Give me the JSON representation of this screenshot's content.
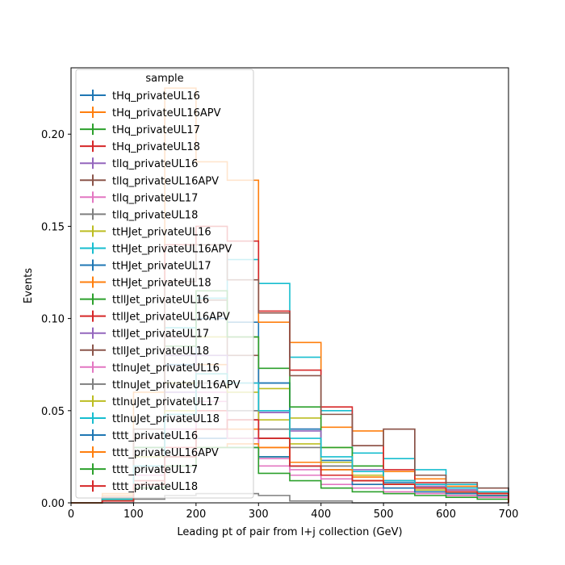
{
  "chart_data": {
    "type": "histogram-step",
    "xlabel": "Leading pt of pair from l+j collection (GeV)",
    "ylabel": "Events",
    "xlim": [
      0,
      700
    ],
    "ylim": [
      0,
      0.236
    ],
    "xticks": [
      "0",
      "100",
      "200",
      "300",
      "400",
      "500",
      "600",
      "700"
    ],
    "yticks": [
      "0.00",
      "0.05",
      "0.10",
      "0.15",
      "0.20"
    ],
    "grid": false,
    "legend": {
      "title": "sample",
      "placement": "upper-left"
    },
    "bin_edges": [
      0,
      50,
      100,
      150,
      200,
      250,
      300,
      350,
      400,
      450,
      500,
      550,
      600,
      650,
      700
    ],
    "series": [
      {
        "name": "tHq_privateUL16",
        "color": "#1f77b4",
        "values": [
          0.0,
          0.002,
          0.008,
          0.02,
          0.035,
          0.045,
          0.065,
          0.04,
          0.02,
          0.015,
          0.01,
          0.008,
          0.006,
          0.004
        ]
      },
      {
        "name": "tHq_privateUL16APV",
        "color": "#ff7f0e",
        "values": [
          0.0,
          0.005,
          0.02,
          0.05,
          0.075,
          0.04,
          0.03,
          0.02,
          0.015,
          0.01,
          0.008,
          0.006,
          0.004,
          0.003
        ]
      },
      {
        "name": "tHq_privateUL17",
        "color": "#2ca02c",
        "values": [
          0.0,
          0.002,
          0.01,
          0.025,
          0.04,
          0.035,
          0.025,
          0.02,
          0.015,
          0.012,
          0.01,
          0.008,
          0.006,
          0.005
        ]
      },
      {
        "name": "tHq_privateUL18",
        "color": "#d62728",
        "values": [
          0.0,
          0.002,
          0.012,
          0.03,
          0.05,
          0.045,
          0.035,
          0.02,
          0.015,
          0.012,
          0.01,
          0.008,
          0.006,
          0.005
        ]
      },
      {
        "name": "tllq_privateUL16",
        "color": "#9467bd",
        "values": [
          0.0,
          0.002,
          0.03,
          0.08,
          0.1,
          0.09,
          0.049,
          0.04,
          0.02,
          0.015,
          0.012,
          0.01,
          0.008,
          0.006
        ]
      },
      {
        "name": "tllq_privateUL16APV",
        "color": "#8c564b",
        "values": [
          0.0,
          0.003,
          0.035,
          0.09,
          0.11,
          0.08,
          0.035,
          0.02,
          0.018,
          0.015,
          0.04,
          0.01,
          0.008,
          0.006
        ]
      },
      {
        "name": "tllq_privateUL17",
        "color": "#e377c2",
        "values": [
          0.0,
          0.002,
          0.015,
          0.04,
          0.06,
          0.035,
          0.02,
          0.015,
          0.01,
          0.008,
          0.006,
          0.005,
          0.004,
          0.003
        ]
      },
      {
        "name": "tllq_privateUL18",
        "color": "#7f7f7f",
        "values": [
          0.0,
          0.0,
          0.002,
          0.004,
          0.005,
          0.005,
          0.004,
          0.001,
          0.001,
          0.0,
          0.0,
          0.0,
          0.0,
          0.0
        ]
      },
      {
        "name": "ttHJet_privateUL16",
        "color": "#bcbd22",
        "values": [
          0.0,
          0.002,
          0.025,
          0.065,
          0.09,
          0.09,
          0.062,
          0.046,
          0.03,
          0.02,
          0.012,
          0.008,
          0.006,
          0.004
        ]
      },
      {
        "name": "ttHJet_privateUL16APV",
        "color": "#17becf",
        "values": [
          0.0,
          0.003,
          0.04,
          0.095,
          0.111,
          0.132,
          0.119,
          0.079,
          0.05,
          0.027,
          0.024,
          0.018,
          0.01,
          0.008
        ]
      },
      {
        "name": "ttHJet_privateUL17",
        "color": "#1f77b4",
        "values": [
          0.0,
          0.002,
          0.03,
          0.075,
          0.1,
          0.098,
          0.065,
          0.04,
          0.023,
          0.015,
          0.011,
          0.008,
          0.006,
          0.004
        ]
      },
      {
        "name": "ttHJet_privateUL18",
        "color": "#ff7f0e",
        "values": [
          0.0,
          0.004,
          0.06,
          0.225,
          0.185,
          0.175,
          0.098,
          0.087,
          0.041,
          0.039,
          0.017,
          0.013,
          0.009,
          0.006
        ]
      },
      {
        "name": "ttllJet_privateUL16",
        "color": "#2ca02c",
        "values": [
          0.0,
          0.002,
          0.03,
          0.085,
          0.115,
          0.09,
          0.073,
          0.052,
          0.03,
          0.02,
          0.012,
          0.008,
          0.006,
          0.004
        ]
      },
      {
        "name": "ttllJet_privateUL16APV",
        "color": "#d62728",
        "values": [
          0.0,
          0.003,
          0.04,
          0.14,
          0.15,
          0.142,
          0.104,
          0.072,
          0.052,
          0.031,
          0.018,
          0.011,
          0.007,
          0.005
        ]
      },
      {
        "name": "ttllJet_privateUL17",
        "color": "#9467bd",
        "values": [
          0.0,
          0.002,
          0.02,
          0.06,
          0.08,
          0.065,
          0.049,
          0.039,
          0.022,
          0.018,
          0.012,
          0.009,
          0.007,
          0.005
        ]
      },
      {
        "name": "ttllJet_privateUL18",
        "color": "#8c564b",
        "values": [
          0.0,
          0.003,
          0.04,
          0.12,
          0.14,
          0.121,
          0.103,
          0.069,
          0.048,
          0.031,
          0.04,
          0.015,
          0.011,
          0.008
        ]
      },
      {
        "name": "ttlnuJet_privateUL16",
        "color": "#e377c2",
        "values": [
          0.0,
          0.002,
          0.015,
          0.04,
          0.055,
          0.05,
          0.024,
          0.018,
          0.013,
          0.01,
          0.008,
          0.006,
          0.004,
          0.003
        ]
      },
      {
        "name": "ttlnuJet_privateUL16APV",
        "color": "#7f7f7f",
        "values": [
          0.0,
          0.002,
          0.018,
          0.045,
          0.065,
          0.05,
          0.04,
          0.03,
          0.02,
          0.015,
          0.01,
          0.008,
          0.006,
          0.004
        ]
      },
      {
        "name": "ttlnuJet_privateUL17",
        "color": "#bcbd22",
        "values": [
          0.0,
          0.002,
          0.02,
          0.05,
          0.07,
          0.06,
          0.045,
          0.032,
          0.022,
          0.015,
          0.01,
          0.007,
          0.005,
          0.004
        ]
      },
      {
        "name": "ttlnuJet_privateUL18",
        "color": "#17becf",
        "values": [
          0.0,
          0.002,
          0.02,
          0.048,
          0.07,
          0.065,
          0.05,
          0.035,
          0.025,
          0.017,
          0.012,
          0.01,
          0.008,
          0.006
        ]
      },
      {
        "name": "tttt_privateUL16",
        "color": "#1f77b4",
        "values": [
          0.0,
          0.001,
          0.008,
          0.02,
          0.03,
          0.03,
          0.025,
          0.02,
          0.015,
          0.01,
          0.008,
          0.006,
          0.005,
          0.004
        ]
      },
      {
        "name": "tttt_privateUL16APV",
        "color": "#ff7f0e",
        "values": [
          0.0,
          0.001,
          0.008,
          0.02,
          0.03,
          0.032,
          0.03,
          0.022,
          0.018,
          0.014,
          0.01,
          0.008,
          0.006,
          0.005
        ]
      },
      {
        "name": "tttt_privateUL17",
        "color": "#2ca02c",
        "values": [
          0.0,
          0.001,
          0.008,
          0.02,
          0.03,
          0.03,
          0.016,
          0.012,
          0.008,
          0.006,
          0.005,
          0.004,
          0.003,
          0.002
        ]
      },
      {
        "name": "tttt_privateUL18",
        "color": "#d62728",
        "values": [
          0.0,
          0.001,
          0.01,
          0.025,
          0.04,
          0.045,
          0.035,
          0.02,
          0.015,
          0.012,
          0.01,
          0.008,
          0.006,
          0.005
        ]
      }
    ]
  }
}
